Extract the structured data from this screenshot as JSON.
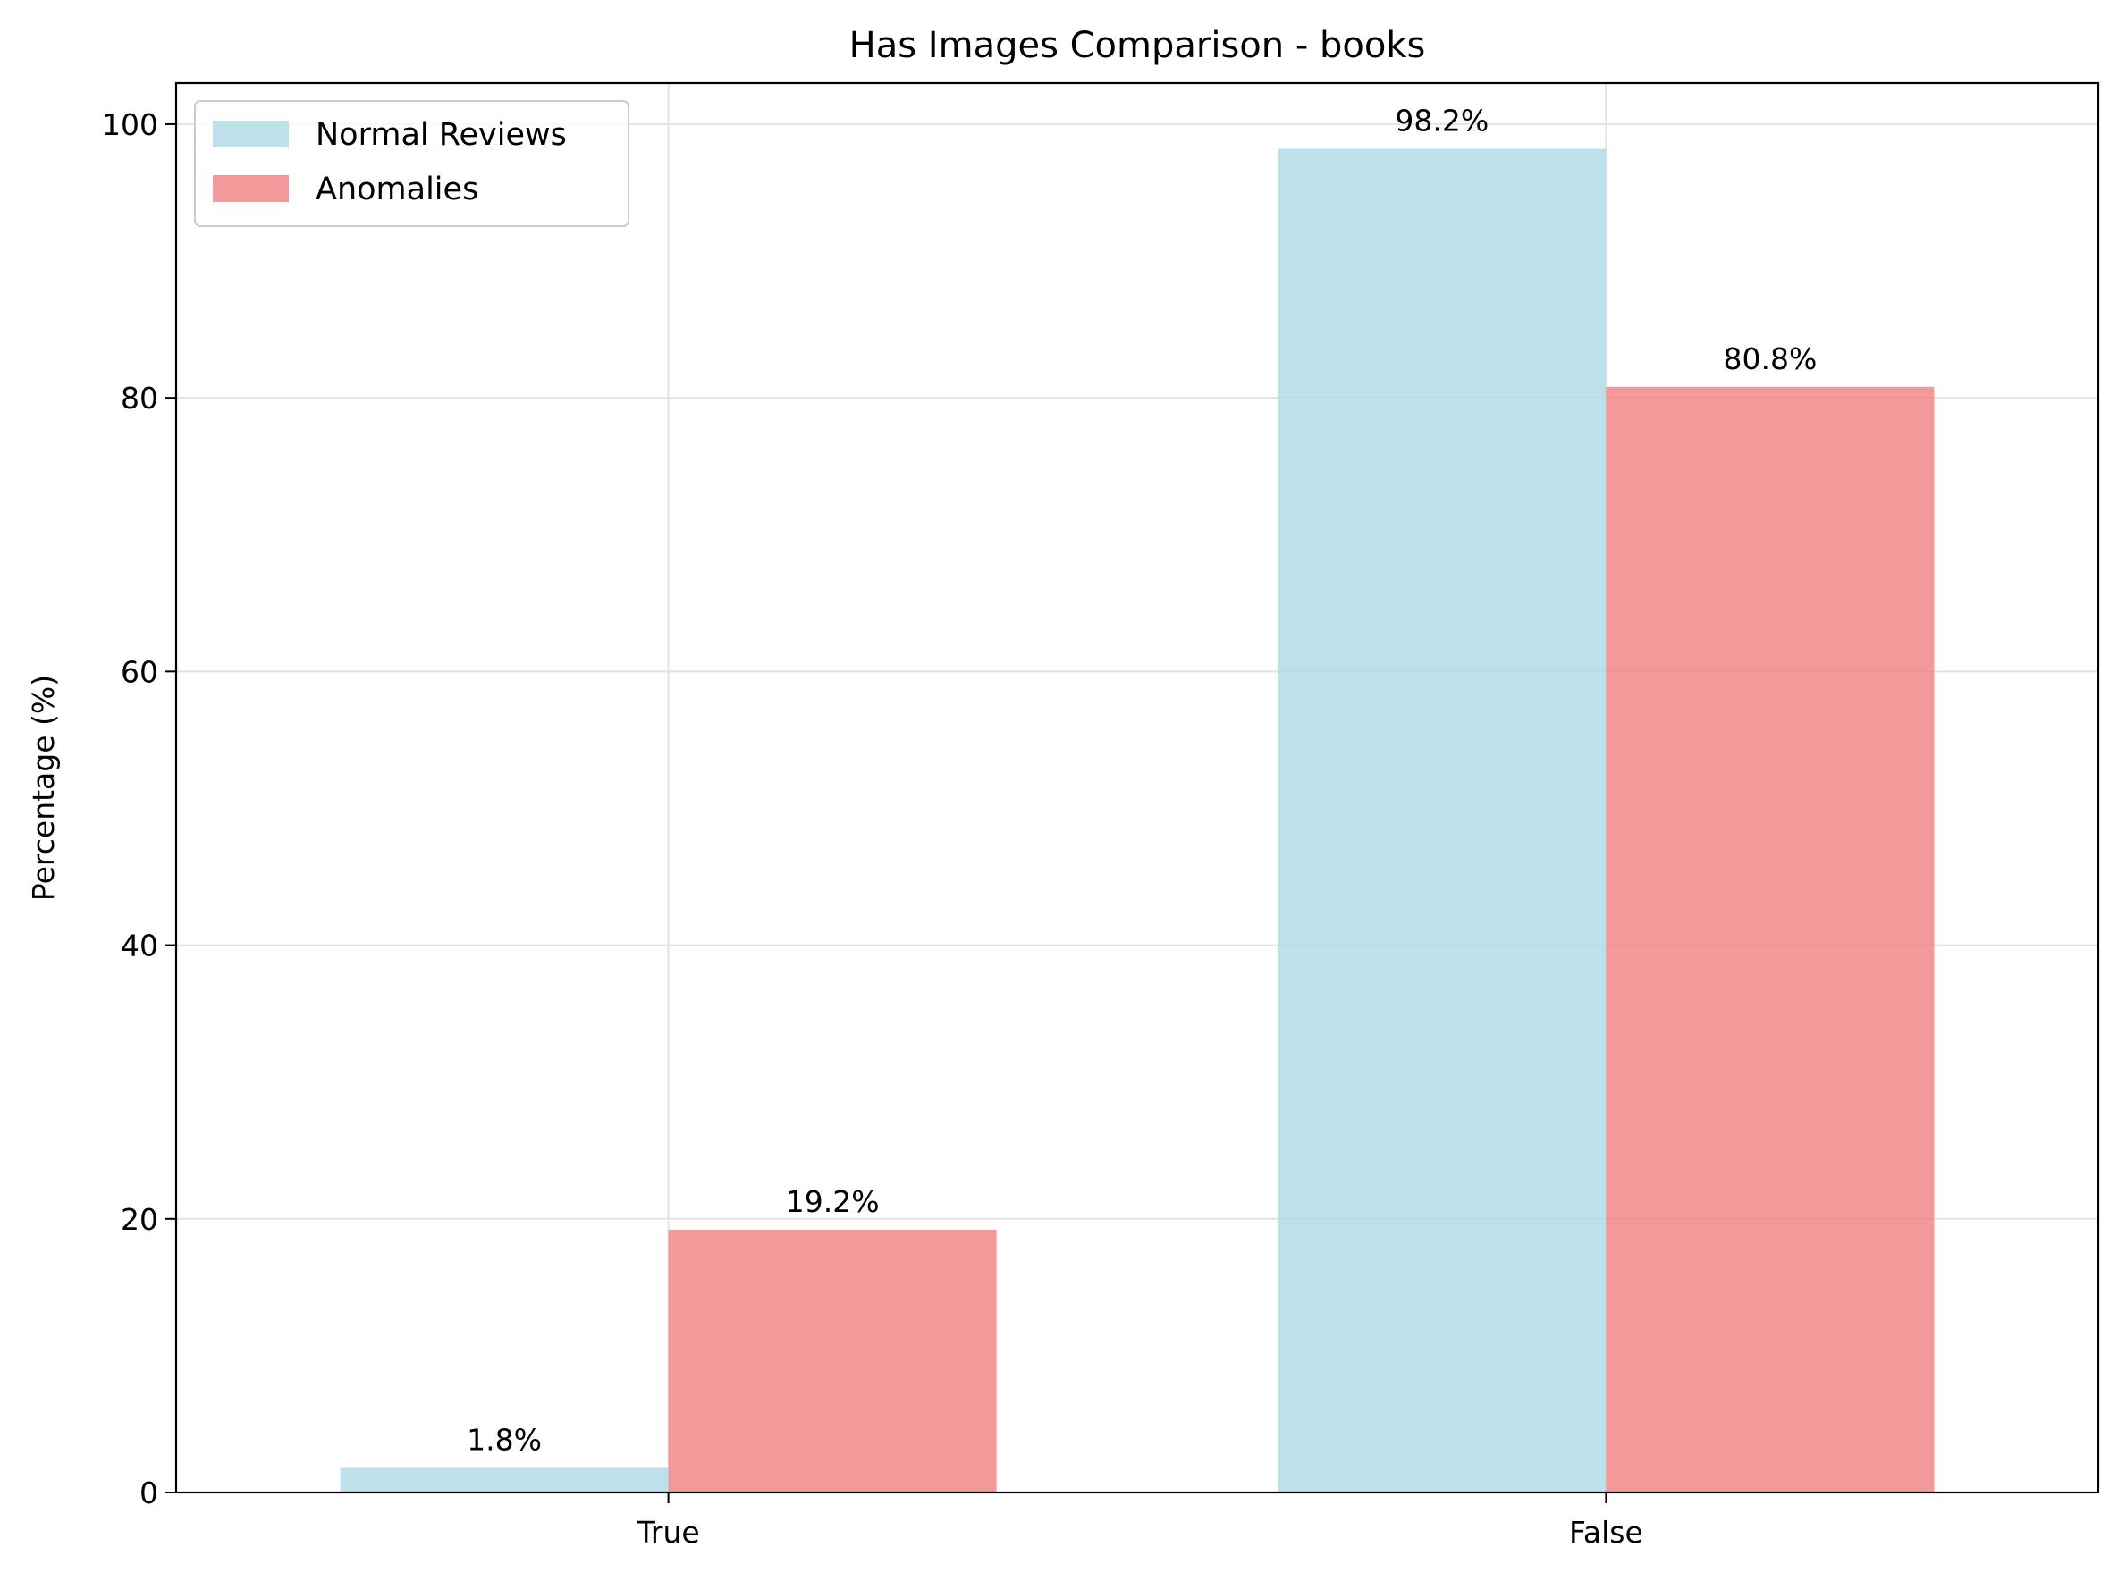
{
  "chart_data": {
    "type": "bar",
    "title": "Has Images Comparison - books",
    "xlabel": "",
    "ylabel": "Percentage (%)",
    "categories": [
      "True",
      "False"
    ],
    "series": [
      {
        "name": "Normal Reviews",
        "values": [
          1.8,
          98.2
        ],
        "labels": [
          "1.8%",
          "98.2%"
        ],
        "color": "#add8e6"
      },
      {
        "name": "Anomalies",
        "values": [
          19.2,
          80.8
        ],
        "labels": [
          "19.2%",
          "80.8%"
        ],
        "color": "#f08080"
      }
    ],
    "ylim": [
      0,
      103
    ],
    "yticks": [
      0,
      20,
      40,
      60,
      80,
      100
    ],
    "grid": true,
    "legend_position": "top-left"
  }
}
